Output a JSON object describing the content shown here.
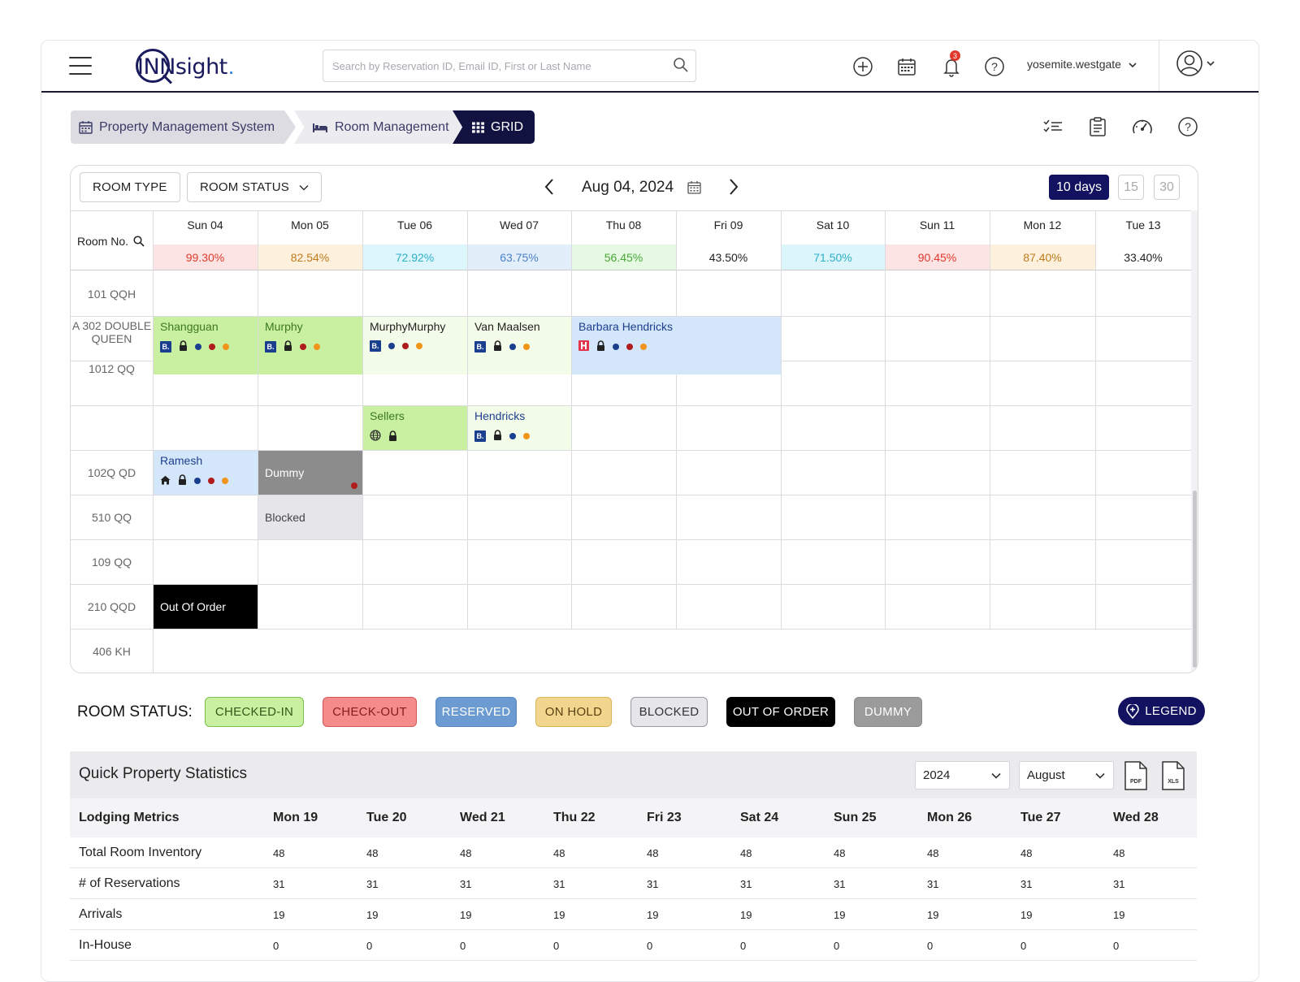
{
  "header": {
    "logo_text": "INNsight",
    "logo_dot": ".",
    "search_placeholder": "Search by Reservation ID, Email ID, First or Last Name",
    "notifications_count": "3",
    "user_name": "yosemite.westgate"
  },
  "breadcrumb": {
    "item1": "Property Management System",
    "item2": "Room Management",
    "item3": "GRID"
  },
  "toolbar": {
    "room_type": "ROOM TYPE",
    "room_status": "ROOM STATUS",
    "current_date": "Aug 04, 2024",
    "days": [
      "10 days",
      "15",
      "30"
    ]
  },
  "grid": {
    "room_no_header": "Room No.",
    "days": [
      {
        "label": "Sun 04",
        "occ": "99.30%",
        "bg": "#fde4e4",
        "fg": "#e0392b"
      },
      {
        "label": "Mon 05",
        "occ": "82.54%",
        "bg": "#fdf1de",
        "fg": "#c07a1a"
      },
      {
        "label": "Tue 06",
        "occ": "72.92%",
        "bg": "#ddf6fb",
        "fg": "#2bb0c8"
      },
      {
        "label": "Wed 07",
        "occ": "63.75%",
        "bg": "#e3eefb",
        "fg": "#4a82c8"
      },
      {
        "label": "Thu 08",
        "occ": "56.45%",
        "bg": "#e6f9e2",
        "fg": "#4aa83a"
      },
      {
        "label": "Fri 09",
        "occ": "43.50%",
        "bg": "#ffffff",
        "fg": "#222222"
      },
      {
        "label": "Sat 10",
        "occ": "71.50%",
        "bg": "#dcf5fb",
        "fg": "#2bb0c8"
      },
      {
        "label": "Sun 11",
        "occ": "90.45%",
        "bg": "#fde4e4",
        "fg": "#e0392b"
      },
      {
        "label": "Mon 12",
        "occ": "87.40%",
        "bg": "#fdf1de",
        "fg": "#c07a1a"
      },
      {
        "label": "Tue 13",
        "occ": "33.40%",
        "bg": "#ffffff",
        "fg": "#222222"
      }
    ],
    "rooms": [
      "101 QQH",
      "A 302 DOUBLE QUEEN",
      "1012 QQ",
      "",
      "102Q QD",
      "510 QQ",
      "109 QQ",
      "210 QQD",
      "406 KH"
    ],
    "reservations": [
      {
        "name": "Shangguan",
        "col": 0,
        "span": 1,
        "row": 1,
        "rowspan": 1.3,
        "bg": "#c9efa0",
        "fg": "#3b7a1e",
        "icons": [
          "b",
          "lock",
          "navy",
          "red",
          "orange"
        ]
      },
      {
        "name": "Murphy",
        "col": 1,
        "span": 1,
        "row": 1,
        "rowspan": 1.3,
        "bg": "#c9efa0",
        "fg": "#3b7a1e",
        "icons": [
          "b",
          "lock",
          "red",
          "orange"
        ]
      },
      {
        "name": "MurphyMurphy",
        "col": 2,
        "span": 1,
        "row": 1,
        "rowspan": 1.3,
        "bg": "#f3fbe9",
        "fg": "#222222",
        "icons": [
          "b",
          "navy",
          "red",
          "orange"
        ]
      },
      {
        "name": "Van Maalsen",
        "col": 3,
        "span": 1,
        "row": 1,
        "rowspan": 1.3,
        "bg": "#f3fbe9",
        "fg": "#222222",
        "icons": [
          "b",
          "lock",
          "navy",
          "orange"
        ]
      },
      {
        "name": "Barbara Hendricks",
        "col": 4,
        "span": 2,
        "row": 1,
        "rowspan": 1.3,
        "bg": "#d3e6fa",
        "fg": "#1d3f8f",
        "icons": [
          "h",
          "lock",
          "navy",
          "red",
          "orange"
        ]
      },
      {
        "name": "Sellers",
        "col": 2,
        "span": 1,
        "row": 3,
        "rowspan": 1,
        "bg": "#c9efa0",
        "fg": "#3b7a1e",
        "icons": [
          "globe",
          "lock"
        ]
      },
      {
        "name": "Hendricks",
        "col": 3,
        "span": 1,
        "row": 3,
        "rowspan": 1,
        "bg": "#f3fbe9",
        "fg": "#1d3f8f",
        "icons": [
          "b",
          "lock",
          "navy",
          "orange"
        ]
      },
      {
        "name": "Ramesh",
        "col": 0,
        "span": 1,
        "row": 4,
        "rowspan": 1,
        "bg": "#d3e6fa",
        "fg": "#1d3f8f",
        "icons": [
          "home",
          "lock",
          "navy",
          "red",
          "orange"
        ]
      },
      {
        "name": "Dummy",
        "col": 1,
        "span": 1,
        "row": 4,
        "rowspan": 1,
        "bg": "#8c8c8c",
        "fg": "#ffffff",
        "icons": [
          "reddot"
        ]
      },
      {
        "name": "Blocked",
        "col": 1,
        "span": 1,
        "row": 5,
        "rowspan": 1,
        "bg": "#e6e6ea",
        "fg": "#444444",
        "icons": []
      },
      {
        "name": "Out Of Order",
        "col": 0,
        "span": 1,
        "row": 7,
        "rowspan": 1,
        "bg": "#000000",
        "fg": "#ffffff",
        "icons": []
      }
    ]
  },
  "room_status": {
    "label": "ROOM STATUS:",
    "chips": [
      {
        "label": "CHECKED-IN",
        "bg": "#c9efa0",
        "fg": "#2f5a18",
        "border": "#7cbf4c"
      },
      {
        "label": "CHECK-OUT",
        "bg": "#f58c8c",
        "fg": "#8a1b1b",
        "border": "#d55858"
      },
      {
        "label": "RESERVED",
        "bg": "#6b9bd1",
        "fg": "#ffffff",
        "border": "#5586c0"
      },
      {
        "label": "ON HOLD",
        "bg": "#f3d68e",
        "fg": "#5a4210",
        "border": "#d9b45a"
      },
      {
        "label": "BLOCKED",
        "bg": "#e6e6ea",
        "fg": "#333333",
        "border": "#9a9aa2"
      },
      {
        "label": "OUT OF ORDER",
        "bg": "#000000",
        "fg": "#ffffff",
        "border": "#000000"
      },
      {
        "label": "DUMMY",
        "bg": "#9b9b9b",
        "fg": "#ffffff",
        "border": "#8a8a8a"
      }
    ],
    "legend_label": "LEGEND"
  },
  "stats": {
    "title": "Quick Property Statistics",
    "year": "2024",
    "month": "August",
    "pdf": "PDF",
    "xls": "XLS",
    "metrics_header": "Lodging Metrics",
    "days": [
      "Mon 19",
      "Tue 20",
      "Wed 21",
      "Thu 22",
      "Fri 23",
      "Sat 24",
      "Sun 25",
      "Mon 26",
      "Tue 27",
      "Wed 28"
    ],
    "rows": [
      {
        "label": "Total Room Inventory",
        "values": [
          "48",
          "48",
          "48",
          "48",
          "48",
          "48",
          "48",
          "48",
          "48",
          "48"
        ]
      },
      {
        "label": "# of Reservations",
        "values": [
          "31",
          "31",
          "31",
          "31",
          "31",
          "31",
          "31",
          "31",
          "31",
          "31"
        ]
      },
      {
        "label": "Arrivals",
        "values": [
          "19",
          "19",
          "19",
          "19",
          "19",
          "19",
          "19",
          "19",
          "19",
          "19"
        ]
      },
      {
        "label": "In-House",
        "values": [
          "0",
          "0",
          "0",
          "0",
          "0",
          "0",
          "0",
          "0",
          "0",
          "0"
        ]
      }
    ]
  }
}
